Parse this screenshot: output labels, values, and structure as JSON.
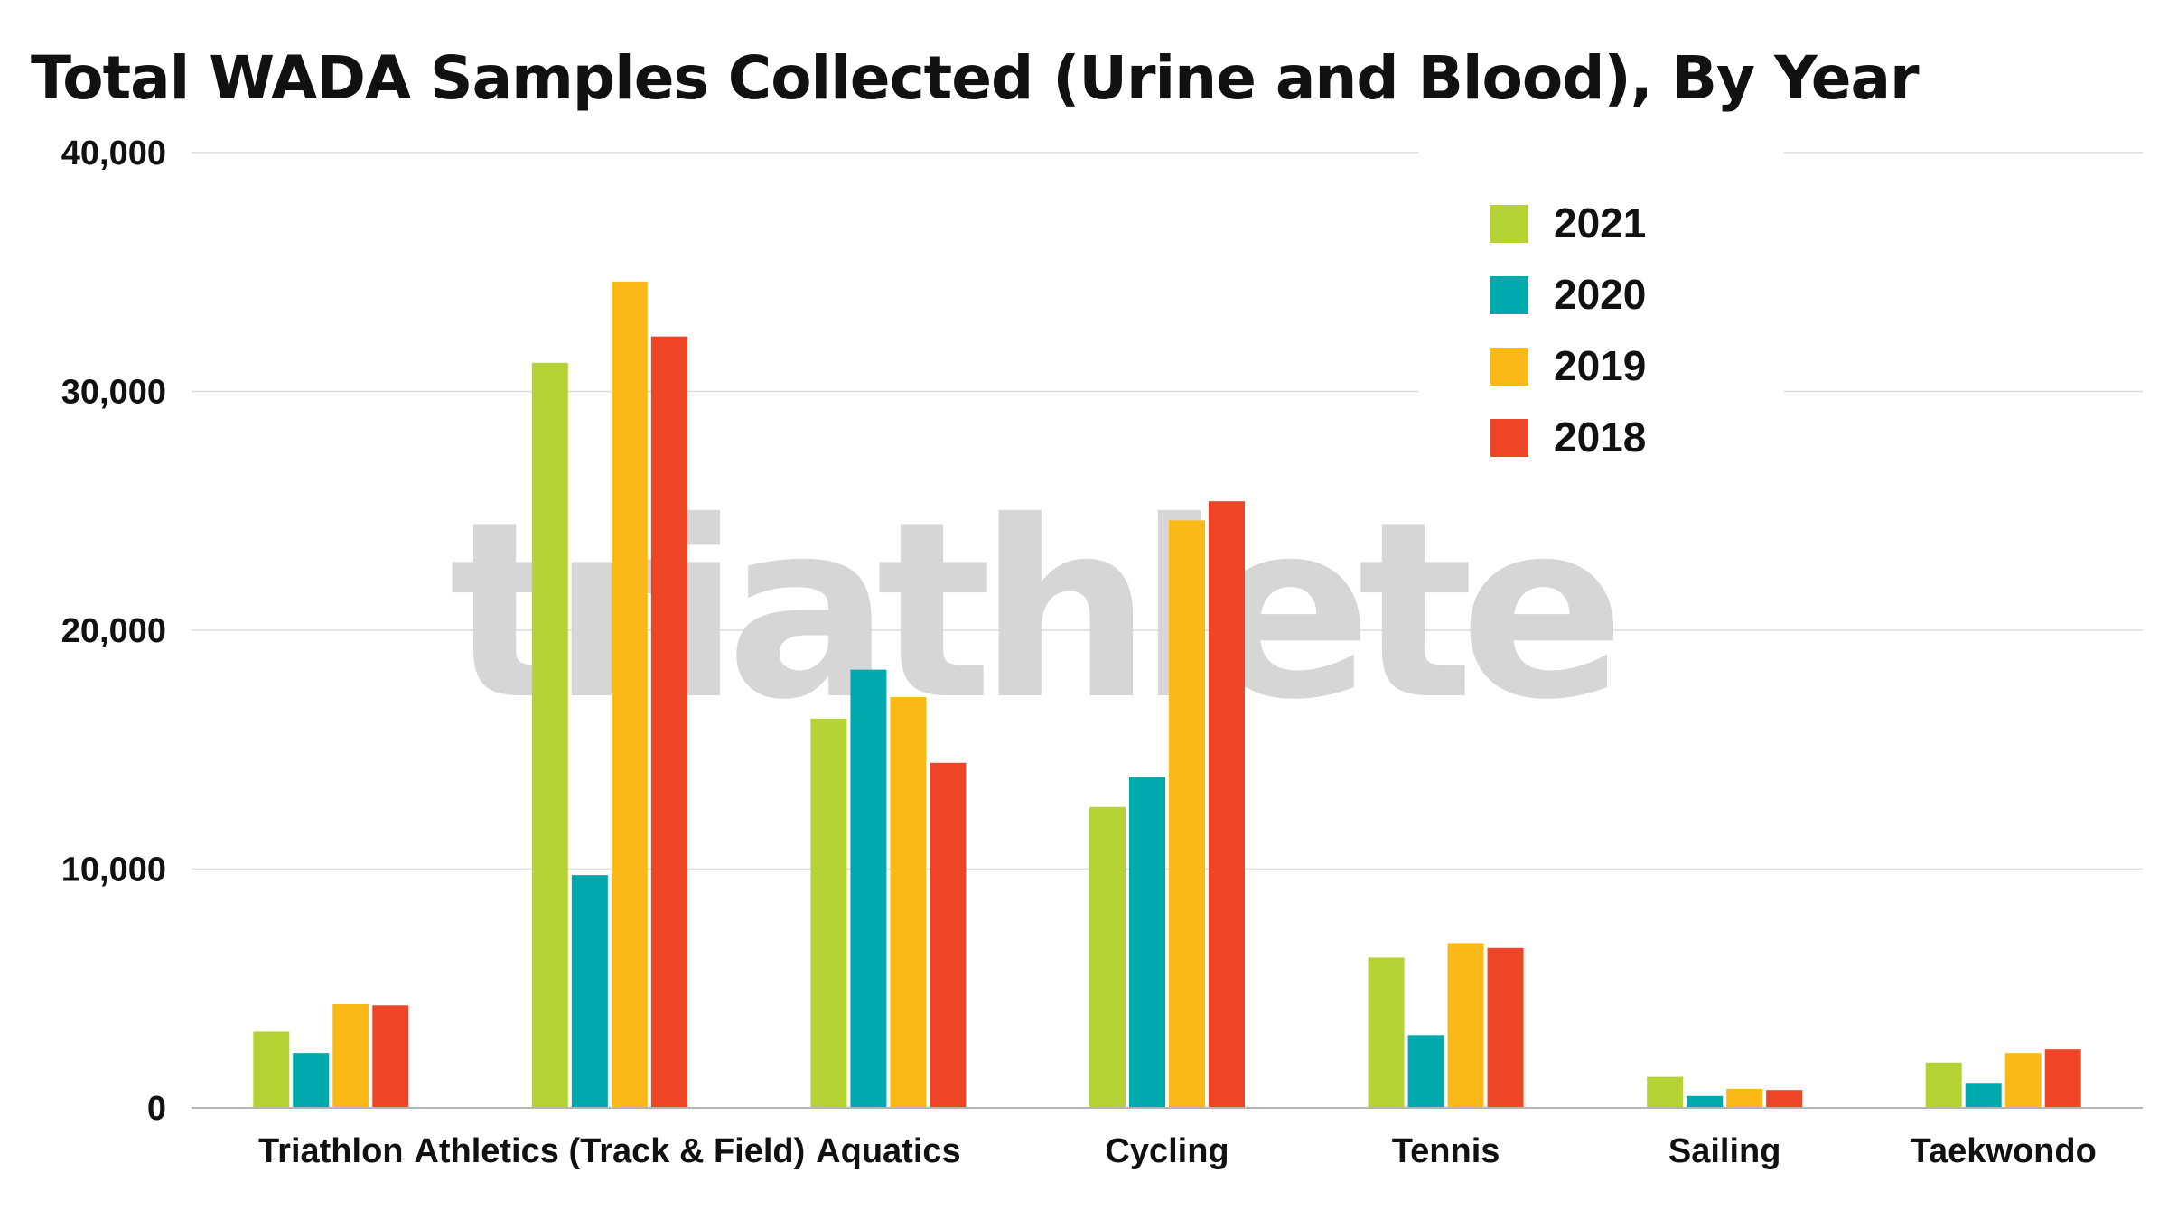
{
  "chart_data": {
    "type": "bar",
    "title": "Total WADA Samples Collected (Urine and Blood), By Year",
    "xlabel": "",
    "ylabel": "",
    "ylim": [
      0,
      40000
    ],
    "yticks": [
      0,
      10000,
      20000,
      30000,
      40000
    ],
    "ytick_labels": [
      "0",
      "10,000",
      "20,000",
      "30,000",
      "40,000"
    ],
    "grid": true,
    "legend_position": "top-right",
    "categories": [
      "Triathlon",
      "Athletics (Track & Field)",
      "Aquatics",
      "Cycling",
      "Tennis",
      "Sailing",
      "Taekwondo"
    ],
    "series": [
      {
        "name": "2021",
        "color": "#b5d335",
        "values": [
          3200,
          31200,
          16300,
          12600,
          6300,
          1300,
          1900
        ]
      },
      {
        "name": "2020",
        "color": "#00a9ae",
        "values": [
          2300,
          9750,
          18350,
          13850,
          3050,
          500,
          1050
        ]
      },
      {
        "name": "2019",
        "color": "#fbb917",
        "values": [
          4350,
          34600,
          17200,
          24600,
          6900,
          800,
          2300
        ]
      },
      {
        "name": "2018",
        "color": "#ef4527",
        "values": [
          4300,
          32300,
          14450,
          25400,
          6700,
          750,
          2450
        ]
      }
    ]
  },
  "watermark": {
    "text": "triathlete"
  }
}
